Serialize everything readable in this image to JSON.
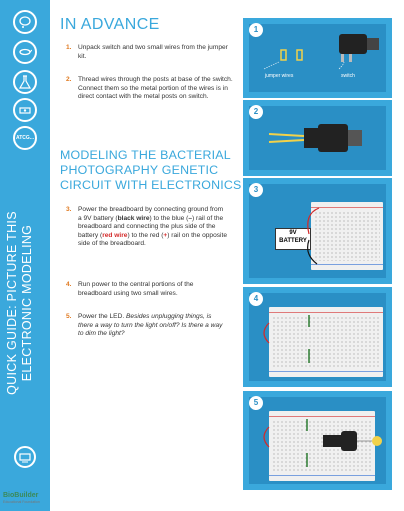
{
  "sidebar": {
    "icons": [
      "speech-bubble-icon",
      "bacteria-icon",
      "flask-icon",
      "microscope-icon",
      "atcg-icon"
    ],
    "atcg_label": "ATCG...",
    "title_line1": "QUICK GUIDE: PICTURE THIS",
    "title_line2": "ELECTRONIC MODELING",
    "logo_text": "BioBuilder",
    "logo_sub": "Educational Foundation"
  },
  "advance": {
    "heading": "IN ADVANCE",
    "steps": [
      {
        "num": "1.",
        "text": "Unpack switch and two small wires from the jumper kit."
      },
      {
        "num": "2.",
        "text": "Thread wires through the posts at base of the switch. Connect them so the metal portion of the wires is in direct contact with the metal posts on switch."
      }
    ]
  },
  "modeling": {
    "heading": "MODELING THE BACTERIAL PHOTOGRAPHY GENETIC CIRCUIT WITH ELECTRONICS",
    "step3": {
      "num": "3.",
      "a": "Power the breadboard by connecting ground from a 9V battery (",
      "b": "black wire",
      "c": ") to the blue (",
      "d": "–",
      "e": ") rail of the breadboard and connecting the plus side of the battery (",
      "f": "red wire",
      "g": ") to the red (",
      "h": "+",
      "i": ") rail on the opposite side of the breadboard."
    },
    "step4": {
      "num": "4.",
      "text": "Run power to the central portions of the breadboard using two small wires."
    },
    "step5": {
      "num": "5.",
      "a": "Power the LED. ",
      "b": "Besides unplugging things, is there a way to turn the light on/off? Is there a way to dim the light?"
    }
  },
  "panels": [
    {
      "num": "1",
      "labels": [
        "jumper wires",
        "switch"
      ]
    },
    {
      "num": "2"
    },
    {
      "num": "3",
      "battery_label": "9V BATTERY"
    },
    {
      "num": "4"
    },
    {
      "num": "5"
    }
  ],
  "colors": {
    "accent": "#3aa8dc",
    "panel_inner": "#2a8fc5",
    "step_number": "#e07a21",
    "red": "#d32a2a"
  }
}
